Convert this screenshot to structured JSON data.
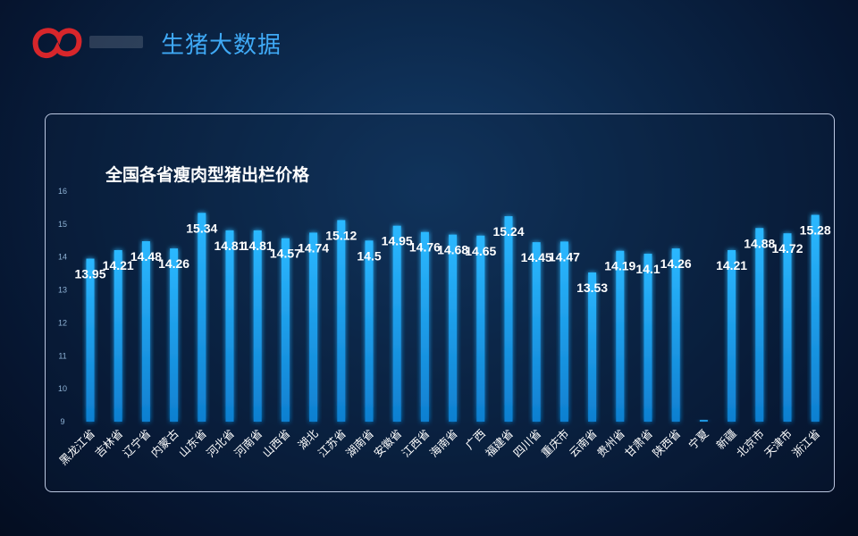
{
  "header": {
    "title": "生猪大数据"
  },
  "colors": {
    "bar": "#1ea3f0",
    "accent": "#3fa9f5",
    "logo": "#d7262b"
  },
  "chart_data": {
    "type": "bar",
    "title": "全国各省瘦肉型猪出栏价格",
    "categories": [
      "黑龙江省",
      "吉林省",
      "辽宁省",
      "内蒙古",
      "山东省",
      "河北省",
      "河南省",
      "山西省",
      "湖北",
      "江苏省",
      "湖南省",
      "安徽省",
      "江西省",
      "海南省",
      "广西",
      "福建省",
      "四川省",
      "重庆市",
      "云南省",
      "贵州省",
      "甘肃省",
      "陕西省",
      "宁夏",
      "新疆",
      "北京市",
      "天津市",
      "浙江省"
    ],
    "values": [
      13.95,
      14.21,
      14.48,
      14.26,
      15.34,
      14.81,
      14.81,
      14.57,
      14.74,
      15.12,
      14.5,
      14.95,
      14.76,
      14.68,
      14.65,
      15.24,
      14.45,
      14.47,
      13.53,
      14.19,
      14.1,
      14.26,
      9.05,
      14.21,
      14.88,
      14.72,
      15.28
    ],
    "value_labels": [
      "13.95",
      "14.21",
      "14.48",
      "14.26",
      "15.34",
      "14.81",
      "14.81",
      "14.57",
      "14.74",
      "15.12",
      "14.5",
      "14.95",
      "14.76",
      "14.68",
      "14.65",
      "15.24",
      "14.45",
      "14.47",
      "13.53",
      "14.19",
      "14.1",
      "14.26",
      "",
      "14.21",
      "14.88",
      "14.72",
      "15.28"
    ],
    "yticks": [
      9,
      10,
      11,
      12,
      13,
      14,
      15,
      16
    ],
    "ylim": [
      9,
      16
    ],
    "grid": false,
    "xlabel": "",
    "ylabel": ""
  }
}
